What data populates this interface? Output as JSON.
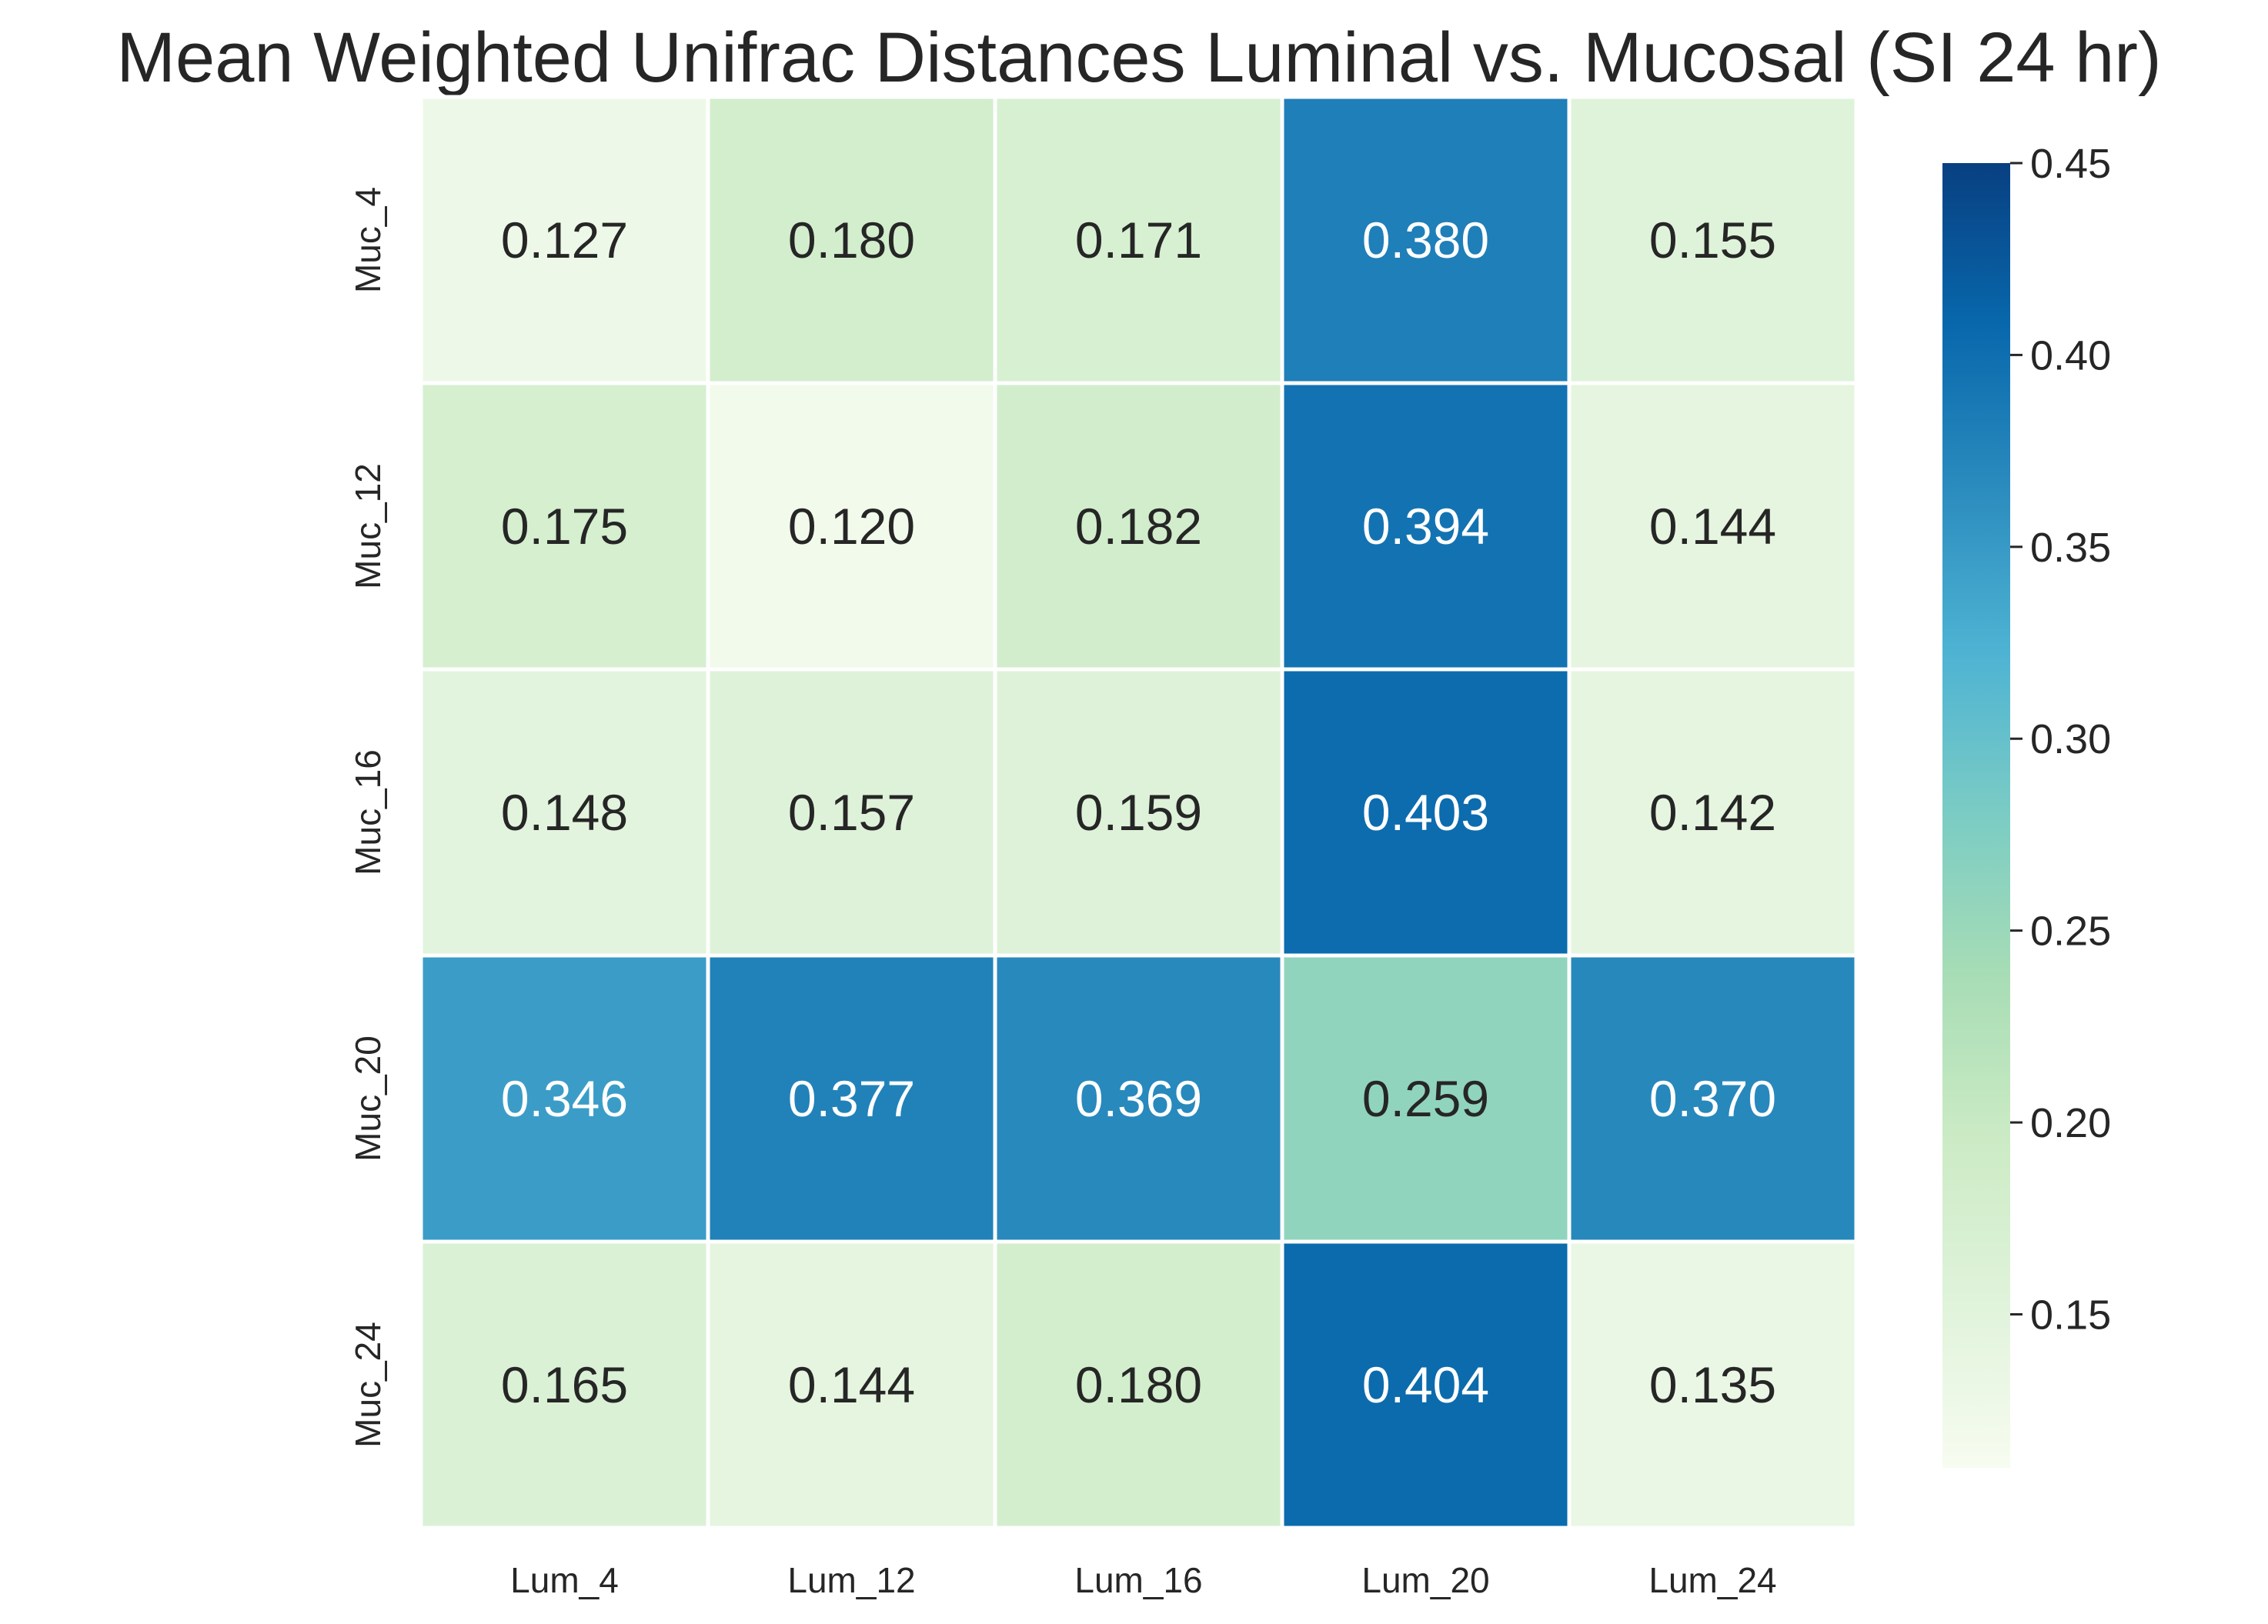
{
  "chart_data": {
    "type": "heatmap",
    "title": "Mean Weighted Unifrac Distances Luminal vs. Mucosal (SI 24 hr)",
    "xlabel": "",
    "ylabel": "",
    "x_categories": [
      "Lum_4",
      "Lum_12",
      "Lum_16",
      "Lum_20",
      "Lum_24"
    ],
    "y_categories": [
      "Muc_4",
      "Muc_12",
      "Muc_16",
      "Muc_20",
      "Muc_24"
    ],
    "values": [
      [
        0.127,
        0.18,
        0.171,
        0.38,
        0.155
      ],
      [
        0.175,
        0.12,
        0.182,
        0.394,
        0.144
      ],
      [
        0.148,
        0.157,
        0.159,
        0.403,
        0.142
      ],
      [
        0.346,
        0.377,
        0.369,
        0.259,
        0.37
      ],
      [
        0.165,
        0.144,
        0.18,
        0.404,
        0.135
      ]
    ],
    "value_labels": [
      [
        "0.127",
        "0.180",
        "0.171",
        "0.380",
        "0.155"
      ],
      [
        "0.175",
        "0.120",
        "0.182",
        "0.394",
        "0.144"
      ],
      [
        "0.148",
        "0.157",
        "0.159",
        "0.403",
        "0.142"
      ],
      [
        "0.346",
        "0.377",
        "0.369",
        "0.259",
        "0.370"
      ],
      [
        "0.165",
        "0.144",
        "0.180",
        "0.404",
        "0.135"
      ]
    ],
    "colormap": "GnBu",
    "vmin": 0.11,
    "vmax": 0.45,
    "colorbar": {
      "ticks": [
        0.15,
        0.2,
        0.25,
        0.3,
        0.35,
        0.4,
        0.45
      ],
      "tick_labels": [
        "0.15",
        "0.20",
        "0.25",
        "0.30",
        "0.35",
        "0.40",
        "0.45"
      ],
      "placement": "right"
    },
    "grid": false
  }
}
